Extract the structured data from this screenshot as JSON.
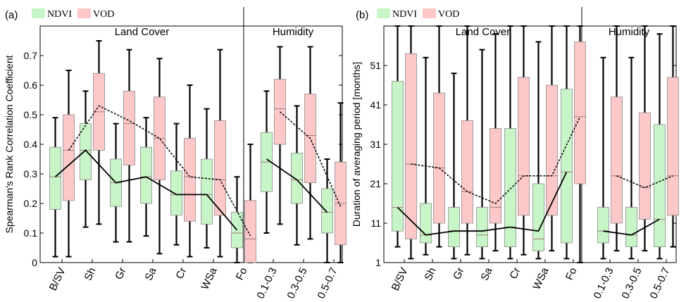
{
  "chart_data": [
    {
      "type": "box",
      "panel_label": "(a)",
      "legend": [
        "NDVI",
        "VOD"
      ],
      "ylabel": "Spearman's Rank Correlation Coefficient",
      "xlabel": "",
      "ylim": [
        0,
        0.8
      ],
      "yticks": [
        0,
        0.1,
        0.2,
        0.3,
        0.4,
        0.5,
        0.6,
        0.7
      ],
      "tick_labels": [
        "0",
        "0.1",
        "0.2",
        "0.3",
        "0.4",
        "0.5",
        "0.6",
        "0.7"
      ],
      "groups": [
        {
          "title": "Land Cover",
          "categories": [
            "B/SV",
            "Sh",
            "Gr",
            "Sa",
            "Cr",
            "WSa",
            "Fo"
          ]
        },
        {
          "title": "Humidity",
          "categories": [
            "0.1-0.3",
            "0.3-0.5",
            "0.5-0.7"
          ]
        }
      ],
      "series": [
        {
          "name": "NDVI",
          "color": "#c8f5c8",
          "mean_line": "solid",
          "boxes": [
            {
              "whisker_low": 0.02,
              "q1": 0.18,
              "median": 0.29,
              "q3": 0.39,
              "whisker_high": 0.49,
              "mean": 0.29
            },
            {
              "whisker_low": 0.12,
              "q1": 0.28,
              "median": 0.38,
              "q3": 0.47,
              "whisker_high": 0.58,
              "mean": 0.38
            },
            {
              "whisker_low": 0.07,
              "q1": 0.19,
              "median": 0.27,
              "q3": 0.35,
              "whisker_high": 0.47,
              "mean": 0.27
            },
            {
              "whisker_low": 0.09,
              "q1": 0.2,
              "median": 0.29,
              "q3": 0.39,
              "whisker_high": 0.49,
              "mean": 0.29
            },
            {
              "whisker_low": 0.06,
              "q1": 0.16,
              "median": 0.23,
              "q3": 0.31,
              "whisker_high": 0.47,
              "mean": 0.23
            },
            {
              "whisker_low": 0.05,
              "q1": 0.13,
              "median": 0.23,
              "q3": 0.35,
              "whisker_high": 0.52,
              "mean": 0.23
            },
            {
              "whisker_low": 0.0,
              "q1": 0.05,
              "median": 0.1,
              "q3": 0.17,
              "whisker_high": 0.29,
              "mean": 0.11
            },
            {
              "whisker_low": 0.1,
              "q1": 0.24,
              "median": 0.34,
              "q3": 0.44,
              "whisker_high": 0.58,
              "mean": 0.35
            },
            {
              "whisker_low": 0.06,
              "q1": 0.2,
              "median": 0.28,
              "q3": 0.37,
              "whisker_high": 0.53,
              "mean": 0.28
            },
            {
              "whisker_low": 0.0,
              "q1": 0.1,
              "median": 0.17,
              "q3": 0.25,
              "whisker_high": 0.35,
              "mean": 0.17
            }
          ]
        },
        {
          "name": "VOD",
          "color": "#ffc8c8",
          "mean_line": "dotted",
          "boxes": [
            {
              "whisker_low": 0.02,
              "q1": 0.21,
              "median": 0.38,
              "q3": 0.5,
              "whisker_high": 0.65,
              "mean": 0.38
            },
            {
              "whisker_low": 0.13,
              "q1": 0.38,
              "median": 0.51,
              "q3": 0.64,
              "whisker_high": 0.75,
              "mean": 0.53
            },
            {
              "whisker_low": 0.07,
              "q1": 0.33,
              "median": 0.47,
              "q3": 0.58,
              "whisker_high": 0.72,
              "mean": 0.48
            },
            {
              "whisker_low": 0.03,
              "q1": 0.28,
              "median": 0.42,
              "q3": 0.56,
              "whisker_high": 0.69,
              "mean": 0.42
            },
            {
              "whisker_low": 0.02,
              "q1": 0.14,
              "median": 0.29,
              "q3": 0.42,
              "whisker_high": 0.6,
              "mean": 0.29
            },
            {
              "whisker_low": 0.02,
              "q1": 0.16,
              "median": 0.28,
              "q3": 0.48,
              "whisker_high": 0.72,
              "mean": 0.28
            },
            {
              "whisker_low": 0.0,
              "q1": 0.0,
              "median": 0.08,
              "q3": 0.21,
              "whisker_high": 0.4,
              "mean": 0.09
            },
            {
              "whisker_low": 0.13,
              "q1": 0.4,
              "median": 0.52,
              "q3": 0.62,
              "whisker_high": 0.73,
              "mean": 0.51
            },
            {
              "whisker_low": 0.08,
              "q1": 0.27,
              "median": 0.43,
              "q3": 0.57,
              "whisker_high": 0.73,
              "mean": 0.42
            },
            {
              "whisker_low": 0.0,
              "q1": 0.06,
              "median": 0.2,
              "q3": 0.34,
              "whisker_high": 0.54,
              "mean": 0.19
            }
          ]
        }
      ]
    },
    {
      "type": "box",
      "panel_label": "(b)",
      "legend": [
        "NDVI",
        "VOD"
      ],
      "ylabel": "Duration of averaging period [months]",
      "xlabel": "",
      "ylim": [
        1,
        61
      ],
      "yticks": [
        1,
        11,
        21,
        31,
        41,
        51
      ],
      "tick_labels": [
        "1",
        "11",
        "21",
        "31",
        "41",
        "51"
      ],
      "groups": [
        {
          "title": "Land Cover",
          "categories": [
            "B/SV",
            "Sh",
            "Gr",
            "Sa",
            "Cr",
            "WSa",
            "Fo"
          ]
        },
        {
          "title": "Humidity",
          "categories": [
            "0.1-0.3",
            "0.3-0.5",
            "0.5-0.7"
          ]
        }
      ],
      "series": [
        {
          "name": "NDVI",
          "color": "#c8f5c8",
          "mean_line": "solid",
          "boxes": [
            {
              "whisker_low": 5,
              "q1": 9,
              "median": 15,
              "q3": 47,
              "whisker_high": 61,
              "mean": 15
            },
            {
              "whisker_low": 3,
              "q1": 6,
              "median": 8,
              "q3": 16,
              "whisker_high": 53,
              "mean": 8
            },
            {
              "whisker_low": 2,
              "q1": 5,
              "median": 9,
              "q3": 15,
              "whisker_high": 49,
              "mean": 9
            },
            {
              "whisker_low": 2,
              "q1": 5,
              "median": 8,
              "q3": 15,
              "whisker_high": 55,
              "mean": 9
            },
            {
              "whisker_low": 2,
              "q1": 5,
              "median": 10,
              "q3": 35,
              "whisker_high": 61,
              "mean": 10
            },
            {
              "whisker_low": 2,
              "q1": 4,
              "median": 7,
              "q3": 21,
              "whisker_high": 57,
              "mean": 9
            },
            {
              "whisker_low": 2,
              "q1": 6,
              "median": 24,
              "q3": 45,
              "whisker_high": 61,
              "mean": 24
            },
            {
              "whisker_low": 2,
              "q1": 6,
              "median": 9,
              "q3": 15,
              "whisker_high": 53,
              "mean": 9
            },
            {
              "whisker_low": 2,
              "q1": 5,
              "median": 8,
              "q3": 15,
              "whisker_high": 53,
              "mean": 8
            },
            {
              "whisker_low": 2,
              "q1": 5,
              "median": 12,
              "q3": 36,
              "whisker_high": 59,
              "mean": 12
            }
          ]
        },
        {
          "name": "VOD",
          "color": "#ffc8c8",
          "mean_line": "dotted",
          "boxes": [
            {
              "whisker_low": 2,
              "q1": 7,
              "median": 26,
              "q3": 54,
              "whisker_high": 61,
              "mean": 26
            },
            {
              "whisker_low": 5,
              "q1": 11,
              "median": 25,
              "q3": 44,
              "whisker_high": 61,
              "mean": 25
            },
            {
              "whisker_low": 3,
              "q1": 11,
              "median": 19,
              "q3": 37,
              "whisker_high": 61,
              "mean": 19
            },
            {
              "whisker_low": 4,
              "q1": 11,
              "median": 15,
              "q3": 35,
              "whisker_high": 59,
              "mean": 16
            },
            {
              "whisker_low": 3,
              "q1": 13,
              "median": 23,
              "q3": 48,
              "whisker_high": 61,
              "mean": 23
            },
            {
              "whisker_low": 4,
              "q1": 13,
              "median": 23,
              "q3": 46,
              "whisker_high": 61,
              "mean": 23
            },
            {
              "whisker_low": 1,
              "q1": 21,
              "median": 38,
              "q3": 57,
              "whisker_high": 61,
              "mean": 38
            },
            {
              "whisker_low": 4,
              "q1": 11,
              "median": 23,
              "q3": 43,
              "whisker_high": 61,
              "mean": 23
            },
            {
              "whisker_low": 4,
              "q1": 12,
              "median": 20,
              "q3": 39,
              "whisker_high": 61,
              "mean": 20
            },
            {
              "whisker_low": 5,
              "q1": 13,
              "median": 23,
              "q3": 48,
              "whisker_high": 61,
              "mean": 23
            }
          ]
        }
      ]
    }
  ]
}
